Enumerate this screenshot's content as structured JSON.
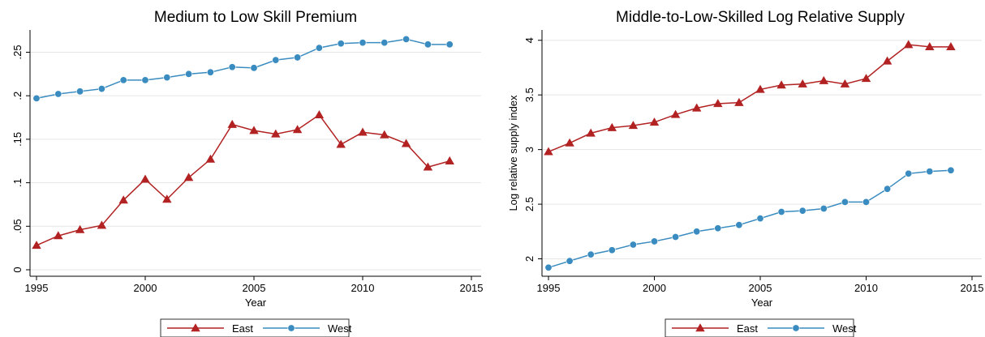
{
  "chart_data": [
    {
      "type": "line",
      "title": "Medium to Low Skill Premium",
      "xlabel": "Year",
      "ylabel": "",
      "x": [
        1995,
        1996,
        1997,
        1998,
        1999,
        2000,
        2001,
        2002,
        2003,
        2004,
        2005,
        2006,
        2007,
        2008,
        2009,
        2010,
        2011,
        2012,
        2013,
        2014
      ],
      "xlim": [
        1995,
        2015
      ],
      "ylim": [
        0,
        0.27
      ],
      "xticks": [
        1995,
        2000,
        2005,
        2010,
        2015
      ],
      "xtick_labels": [
        "1995",
        "2000",
        "2005",
        "2010",
        "2015"
      ],
      "yticks": [
        0,
        0.05,
        0.1,
        0.15,
        0.2,
        0.25
      ],
      "ytick_labels": [
        "0",
        ".05",
        ".1",
        ".15",
        ".2",
        ".25"
      ],
      "grid": true,
      "legend_position": "bottom",
      "series": [
        {
          "name": "East",
          "color": "#b22222",
          "marker": "triangle",
          "values": [
            0.028,
            0.039,
            0.046,
            0.051,
            0.08,
            0.104,
            0.081,
            0.106,
            0.127,
            0.167,
            0.16,
            0.156,
            0.161,
            0.178,
            0.144,
            0.158,
            0.155,
            0.145,
            0.118,
            0.125
          ]
        },
        {
          "name": "West",
          "color": "#3a8cc0",
          "marker": "circle",
          "values": [
            0.197,
            0.202,
            0.205,
            0.208,
            0.218,
            0.218,
            0.221,
            0.225,
            0.227,
            0.233,
            0.232,
            0.241,
            0.244,
            0.255,
            0.26,
            0.261,
            0.261,
            0.265,
            0.259,
            0.259
          ]
        }
      ]
    },
    {
      "type": "line",
      "title": "Middle-to-Low-Skilled Log Relative Supply",
      "xlabel": "Year",
      "ylabel": "Log relative supply index",
      "x": [
        1995,
        1996,
        1997,
        1998,
        1999,
        2000,
        2001,
        2002,
        2003,
        2004,
        2005,
        2006,
        2007,
        2008,
        2009,
        2010,
        2011,
        2012,
        2013,
        2014
      ],
      "xlim": [
        1995,
        2015
      ],
      "ylim": [
        1.9,
        4.05
      ],
      "xticks": [
        1995,
        2000,
        2005,
        2010,
        2015
      ],
      "xtick_labels": [
        "1995",
        "2000",
        "2005",
        "2010",
        "2015"
      ],
      "yticks": [
        2,
        2.5,
        3,
        3.5,
        4
      ],
      "ytick_labels": [
        "2",
        "2.5",
        "3",
        "3.5",
        "4"
      ],
      "grid": true,
      "legend_position": "bottom",
      "series": [
        {
          "name": "East",
          "color": "#b22222",
          "marker": "triangle",
          "values": [
            2.98,
            3.06,
            3.15,
            3.2,
            3.22,
            3.25,
            3.32,
            3.38,
            3.42,
            3.43,
            3.55,
            3.59,
            3.6,
            3.63,
            3.6,
            3.65,
            3.81,
            3.96,
            3.94,
            3.94
          ]
        },
        {
          "name": "West",
          "color": "#3a8cc0",
          "marker": "circle",
          "values": [
            1.92,
            1.98,
            2.04,
            2.08,
            2.13,
            2.16,
            2.2,
            2.25,
            2.28,
            2.31,
            2.37,
            2.43,
            2.44,
            2.46,
            2.52,
            2.52,
            2.64,
            2.78,
            2.8,
            2.81
          ]
        }
      ]
    }
  ]
}
